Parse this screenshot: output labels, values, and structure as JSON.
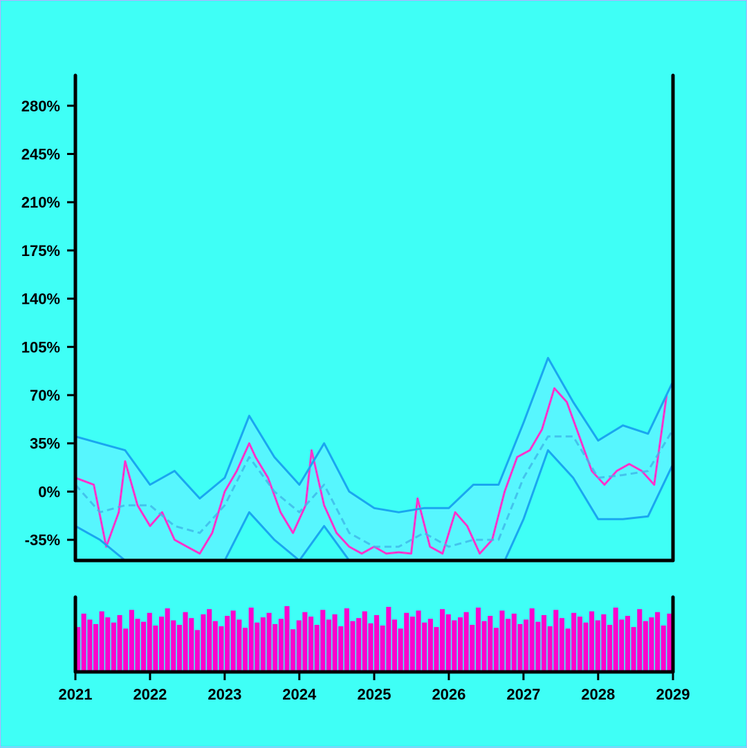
{
  "chart_data": {
    "type": "line",
    "title": "",
    "xlabel": "",
    "ylabel": "",
    "y_unit": "%",
    "xlim": [
      "2021-01-01",
      "2029-01-01"
    ],
    "ylim": [
      -50,
      302
    ],
    "grid": false,
    "legend": "none",
    "x_ticks": [
      "2021",
      "2022",
      "2023",
      "2024",
      "2025",
      "2026",
      "2027",
      "2028",
      "2029"
    ],
    "y_ticks": [
      {
        "value": -35,
        "label": "-35%"
      },
      {
        "value": 0,
        "label": "0%"
      },
      {
        "value": 35,
        "label": "35%"
      },
      {
        "value": 70,
        "label": "70%"
      },
      {
        "value": 105,
        "label": "105%"
      },
      {
        "value": 140,
        "label": "140%"
      },
      {
        "value": 175,
        "label": "175%"
      },
      {
        "value": 210,
        "label": "210%"
      },
      {
        "value": 245,
        "label": "245%"
      },
      {
        "value": 280,
        "label": "280%"
      }
    ],
    "series": [
      {
        "role": "price",
        "color": "#ff33cc",
        "x": [
          "2021-01",
          "2021-04",
          "2021-06",
          "2021-08",
          "2021-09",
          "2021-11",
          "2022-01",
          "2022-03",
          "2022-05",
          "2022-07",
          "2022-09",
          "2022-11",
          "2023-01",
          "2023-03",
          "2023-05",
          "2023-06",
          "2023-08",
          "2023-10",
          "2023-12",
          "2024-02",
          "2024-03",
          "2024-05",
          "2024-07",
          "2024-09",
          "2024-11",
          "2025-01",
          "2025-03",
          "2025-05",
          "2025-07",
          "2025-08",
          "2025-10",
          "2025-12",
          "2026-02",
          "2026-04",
          "2026-06",
          "2026-08",
          "2026-10",
          "2026-12",
          "2027-02",
          "2027-04",
          "2027-06",
          "2027-08",
          "2027-10",
          "2027-12",
          "2028-02",
          "2028-04",
          "2028-06",
          "2028-08",
          "2028-10",
          "2028-12"
        ],
        "values": [
          10,
          5,
          -40,
          -15,
          22,
          -10,
          -25,
          -15,
          -35,
          -40,
          -45,
          -30,
          0,
          15,
          35,
          25,
          10,
          -15,
          -30,
          -10,
          30,
          -10,
          -30,
          -40,
          -45,
          -40,
          -45,
          -44,
          -45,
          -5,
          -40,
          -45,
          -15,
          -25,
          -45,
          -35,
          0,
          25,
          30,
          45,
          75,
          65,
          40,
          15,
          5,
          15,
          20,
          15,
          5,
          70
        ]
      },
      {
        "role": "moving-average",
        "color": "#3fb6e8",
        "x": [
          "2021-01",
          "2021-05",
          "2021-09",
          "2022-01",
          "2022-05",
          "2022-09",
          "2023-01",
          "2023-05",
          "2023-09",
          "2024-01",
          "2024-05",
          "2024-09",
          "2025-01",
          "2025-05",
          "2025-09",
          "2026-01",
          "2026-05",
          "2026-09",
          "2027-01",
          "2027-05",
          "2027-09",
          "2028-01",
          "2028-05",
          "2028-09",
          "2029-01"
        ],
        "values": [
          5,
          -15,
          -10,
          -10,
          -25,
          -30,
          -10,
          25,
          0,
          -15,
          5,
          -30,
          -40,
          -40,
          -30,
          -40,
          -35,
          -35,
          10,
          40,
          40,
          10,
          12,
          15,
          45
        ]
      },
      {
        "role": "upper-band",
        "color": "#1aa6f0",
        "x": [
          "2021-01",
          "2021-05",
          "2021-09",
          "2022-01",
          "2022-05",
          "2022-09",
          "2023-01",
          "2023-05",
          "2023-09",
          "2024-01",
          "2024-05",
          "2024-09",
          "2025-01",
          "2025-05",
          "2025-09",
          "2026-01",
          "2026-05",
          "2026-09",
          "2027-01",
          "2027-05",
          "2027-09",
          "2028-01",
          "2028-05",
          "2028-09",
          "2029-01"
        ],
        "values": [
          40,
          35,
          30,
          5,
          15,
          -5,
          10,
          55,
          25,
          5,
          35,
          0,
          -12,
          -15,
          -12,
          -12,
          5,
          5,
          50,
          97,
          65,
          37,
          48,
          42,
          80
        ]
      },
      {
        "role": "lower-band",
        "color": "#1aa6f0",
        "x": [
          "2021-01",
          "2021-05",
          "2021-09",
          "2022-01",
          "2022-05",
          "2022-09",
          "2023-01",
          "2023-05",
          "2023-09",
          "2024-01",
          "2024-05",
          "2024-09",
          "2025-01",
          "2025-05",
          "2025-09",
          "2026-01",
          "2026-05",
          "2026-09",
          "2027-01",
          "2027-05",
          "2027-09",
          "2028-01",
          "2028-05",
          "2028-09",
          "2029-01"
        ],
        "values": [
          -25,
          -35,
          -50,
          -50,
          -50,
          -50,
          -50,
          -15,
          -35,
          -50,
          -25,
          -50,
          -60,
          -60,
          -60,
          -60,
          -50,
          -60,
          -20,
          30,
          10,
          -20,
          -20,
          -18,
          20
        ]
      }
    ],
    "volume": {
      "color": "#ff00cc",
      "x_start": "2021-01",
      "x_end": "2029-01",
      "values": [
        60,
        78,
        70,
        64,
        81,
        73,
        66,
        76,
        58,
        83,
        71,
        67,
        79,
        62,
        74,
        85,
        69,
        63,
        80,
        72,
        56,
        77,
        84,
        68,
        61,
        75,
        82,
        70,
        59,
        86,
        66,
        73,
        79,
        64,
        71,
        88,
        57,
        69,
        80,
        74,
        63,
        83,
        70,
        77,
        61,
        85,
        68,
        72,
        81,
        65,
        76,
        62,
        87,
        70,
        58,
        79,
        74,
        82,
        66,
        71,
        60,
        84,
        77,
        69,
        73,
        80,
        63,
        86,
        68,
        75,
        59,
        82,
        71,
        78,
        64,
        70,
        85,
        67,
        76,
        61,
        83,
        72,
        58,
        79,
        74,
        66,
        81,
        69,
        77,
        63,
        86,
        70,
        75,
        60,
        84,
        68,
        73,
        80,
        62,
        78
      ]
    }
  }
}
